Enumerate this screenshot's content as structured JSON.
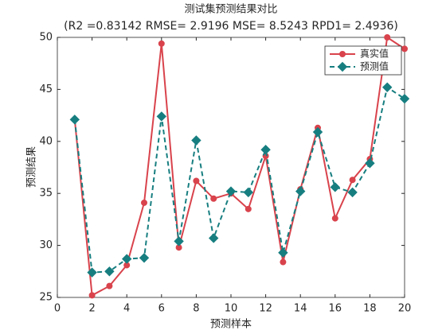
{
  "chart_data": {
    "type": "line",
    "title": "测试集预测结果对比",
    "subtitle": "(R2 =0.83142 RMSE= 2.9196 MSE= 8.5243 RPD1= 2.4936)",
    "x_label": "预测样本",
    "y_label": "预测结果",
    "x": [
      1,
      2,
      3,
      4,
      5,
      6,
      7,
      8,
      9,
      10,
      11,
      12,
      13,
      14,
      15,
      16,
      17,
      18,
      19,
      20
    ],
    "series": [
      {
        "name": "真实值",
        "color": "#d9434c",
        "marker": "circle",
        "dash": false,
        "values": [
          42.1,
          25.2,
          26.1,
          28.1,
          34.1,
          49.4,
          29.8,
          36.2,
          34.5,
          35.0,
          33.5,
          38.6,
          28.4,
          35.4,
          41.3,
          32.6,
          36.3,
          38.3,
          50.0,
          48.9
        ]
      },
      {
        "name": "预测值",
        "color": "#177e80",
        "marker": "diamond",
        "dash": true,
        "values": [
          42.1,
          27.4,
          27.5,
          28.7,
          28.8,
          42.4,
          30.4,
          40.1,
          30.7,
          35.2,
          35.1,
          39.2,
          29.3,
          35.2,
          40.9,
          35.6,
          35.1,
          37.9,
          45.2,
          44.1
        ]
      }
    ],
    "xlim": [
      0,
      20
    ],
    "xticks": [
      0,
      2,
      4,
      6,
      8,
      10,
      12,
      14,
      16,
      18,
      20
    ],
    "ylim": [
      25,
      50
    ],
    "yticks": [
      25,
      30,
      35,
      40,
      45,
      50
    ],
    "legend": "top-right"
  }
}
